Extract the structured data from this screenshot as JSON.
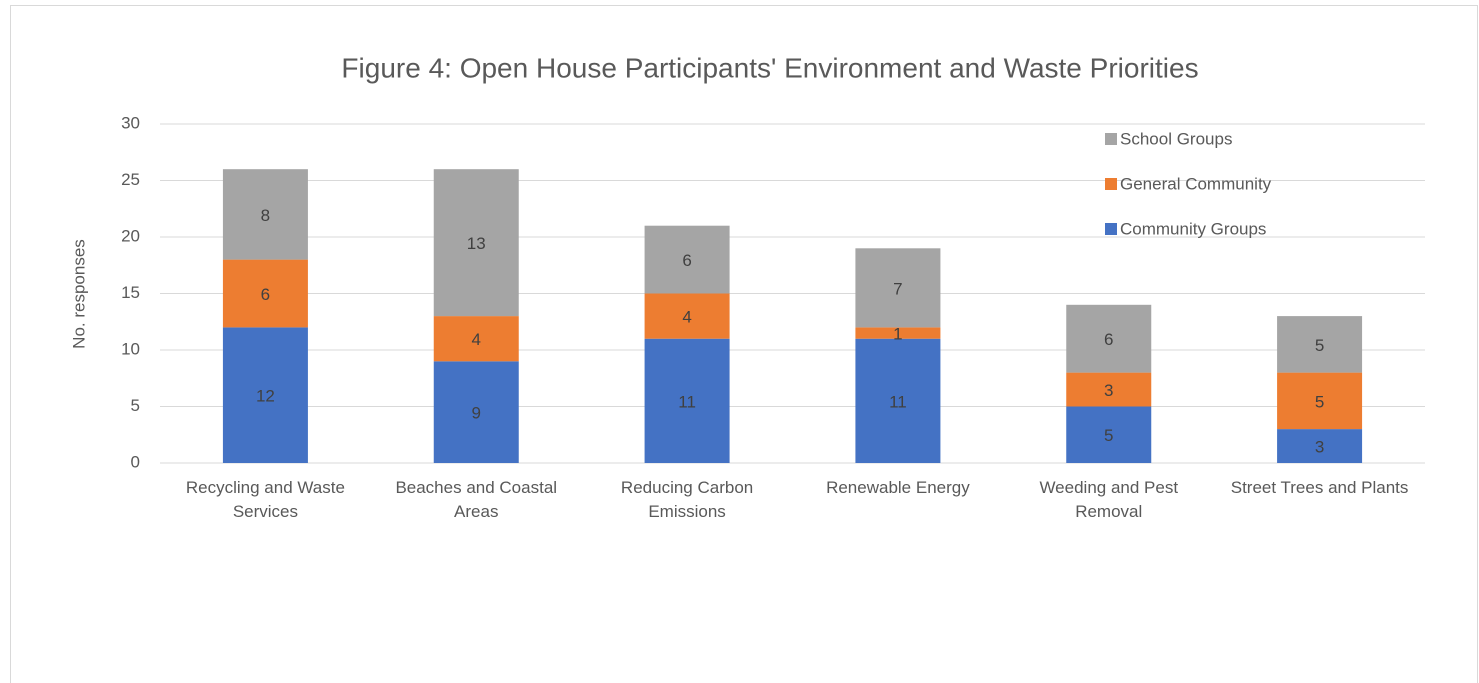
{
  "chart_data": {
    "type": "stacked_bar",
    "title": "Figure 4: Open House Participants' Environment and Waste Priorities",
    "y_label": "No. responses",
    "categories": [
      "Recycling and Waste Services",
      "Beaches and Coastal Areas",
      "Reducing Carbon Emissions",
      "Renewable Energy",
      "Weeding and Pest Removal",
      "Street Trees and Plants"
    ],
    "series": [
      {
        "name": "Community Groups",
        "color": "#4472c4",
        "values": [
          12,
          9,
          11,
          11,
          5,
          3
        ]
      },
      {
        "name": "General Community",
        "color": "#ed7d31",
        "values": [
          6,
          4,
          4,
          1,
          3,
          5
        ]
      },
      {
        "name": "School Groups",
        "color": "#a5a5a5",
        "values": [
          8,
          13,
          6,
          7,
          6,
          5
        ]
      }
    ],
    "ylim": [
      0,
      30
    ],
    "yticks": [
      0,
      5,
      10,
      15,
      20,
      25,
      30
    ],
    "grid": true,
    "legend": "top-right"
  }
}
